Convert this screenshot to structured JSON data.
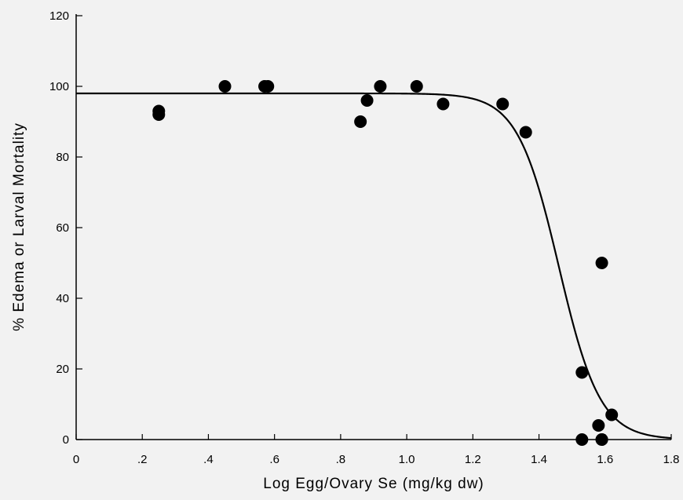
{
  "chart_data": {
    "type": "scatter",
    "title": "",
    "xlabel": "Log Egg/Ovary Se (mg/kg dw)",
    "ylabel": "% Edema or Larval Mortality",
    "xlim": [
      0,
      1.8
    ],
    "ylim": [
      0,
      120
    ],
    "x_ticks": [
      0,
      0.2,
      0.4,
      0.6,
      0.8,
      1.0,
      1.2,
      1.4,
      1.6,
      1.8
    ],
    "x_tick_labels": [
      "0",
      ".2",
      ".4",
      ".6",
      ".8",
      "1.0",
      "1.2",
      "1.4",
      "1.6",
      "1.8"
    ],
    "y_ticks": [
      0,
      20,
      40,
      60,
      80,
      100,
      120
    ],
    "y_tick_labels": [
      "0",
      "20",
      "40",
      "60",
      "80",
      "100",
      "120"
    ],
    "grid": false,
    "legend": "none",
    "series": [
      {
        "x": [
          0.25,
          0.25,
          0.45,
          0.57,
          0.58,
          0.86,
          0.88,
          0.92,
          1.03,
          1.11,
          1.29,
          1.36,
          1.53,
          1.53,
          1.58,
          1.59,
          1.59,
          1.59,
          1.62
        ],
        "y": [
          93,
          92,
          100,
          100,
          100,
          90,
          96,
          100,
          100,
          95,
          95,
          87,
          19,
          0,
          4,
          50,
          0,
          0,
          7
        ]
      }
    ],
    "fit_curve": {
      "model": "logistic",
      "top": 98,
      "bottom": 0,
      "x50": 1.46,
      "slope": 16
    }
  }
}
